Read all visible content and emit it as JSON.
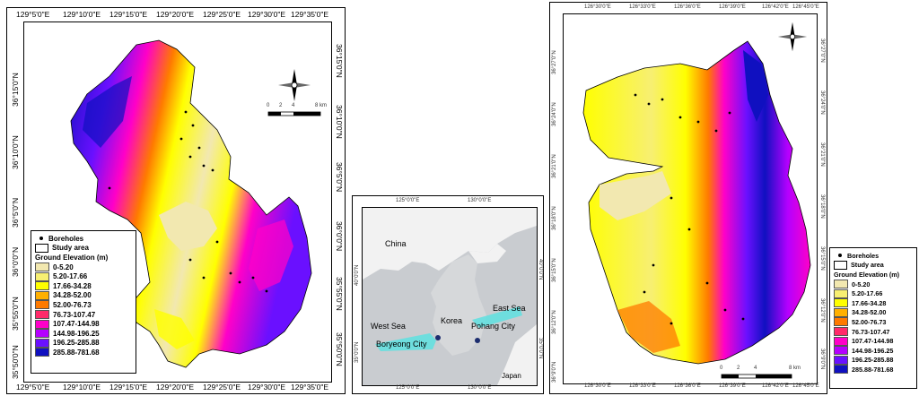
{
  "legend": {
    "boreholes": "Boreholes",
    "study_area": "Study area",
    "title": "Ground Elevation (m)",
    "classes": [
      {
        "label": "0-5.20",
        "color": "#f2e8b0"
      },
      {
        "label": "5.20-17.66",
        "color": "#f7ef72"
      },
      {
        "label": "17.66-34.28",
        "color": "#ffff00"
      },
      {
        "label": "34.28-52.00",
        "color": "#ffb000"
      },
      {
        "label": "52.00-76.73",
        "color": "#ff7a00"
      },
      {
        "label": "76.73-107.47",
        "color": "#ff2a6a"
      },
      {
        "label": "107.47-144.98",
        "color": "#ff00c8"
      },
      {
        "label": "144.98-196.25",
        "color": "#b400ff"
      },
      {
        "label": "196.25-285.88",
        "color": "#6a10ff"
      },
      {
        "label": "285.88-781.68",
        "color": "#1010c0"
      }
    ]
  },
  "left_map": {
    "top_ticks": [
      "129°5'0\"E",
      "129°10'0\"E",
      "129°15'0\"E",
      "129°20'0\"E",
      "129°25'0\"E",
      "129°30'0\"E",
      "129°35'0\"E"
    ],
    "bottom_ticks": [
      "129°5'0\"E",
      "129°10'0\"E",
      "129°15'0\"E",
      "129°20'0\"E",
      "129°25'0\"E",
      "129°30'0\"E",
      "129°35'0\"E"
    ],
    "side_ticks": [
      "36°15'0\"N",
      "36°10'0\"N",
      "36°5'0\"N",
      "36°0'0\"N",
      "35°55'0\"N",
      "35°50'0\"N"
    ],
    "scale_labels": [
      "0",
      "2",
      "4",
      "8 km"
    ]
  },
  "inset": {
    "top_ticks": [
      "125°0'0\"E",
      "130°0'0\"E"
    ],
    "bottom_ticks": [
      "125°0'0\"E",
      "130°0'0\"E"
    ],
    "side_ticks": [
      "40°0'0\"N",
      "35°0'0\"N"
    ],
    "labels": {
      "china": "China",
      "korea": "Korea",
      "east_sea": "East Sea",
      "west_sea": "West Sea",
      "japan": "Japan",
      "pohang": "Pohang City",
      "boryeong": "Boryeong City"
    },
    "colors": {
      "sea": "#c9ccd0",
      "land": "#f2f2f2",
      "korea": "#d6d8da",
      "highlight": "#5ee0e0",
      "city": "#1c2d6e"
    }
  },
  "right_map": {
    "top_ticks": [
      "126°30'0\"E",
      "126°33'0\"E",
      "126°36'0\"E",
      "126°39'0\"E",
      "126°42'0\"E",
      "126°45'0\"E"
    ],
    "bottom_ticks": [
      "126°30'0\"E",
      "126°33'0\"E",
      "126°36'0\"E",
      "126°39'0\"E",
      "126°42'0\"E",
      "126°45'0\"E"
    ],
    "side_ticks": [
      "36°27'0\"N",
      "36°24'0\"N",
      "36°21'0\"N",
      "36°18'0\"N",
      "36°15'0\"N",
      "36°12'0\"N",
      "36°9'0\"N"
    ],
    "scale_labels": [
      "0",
      "2",
      "4",
      "8 km"
    ]
  }
}
